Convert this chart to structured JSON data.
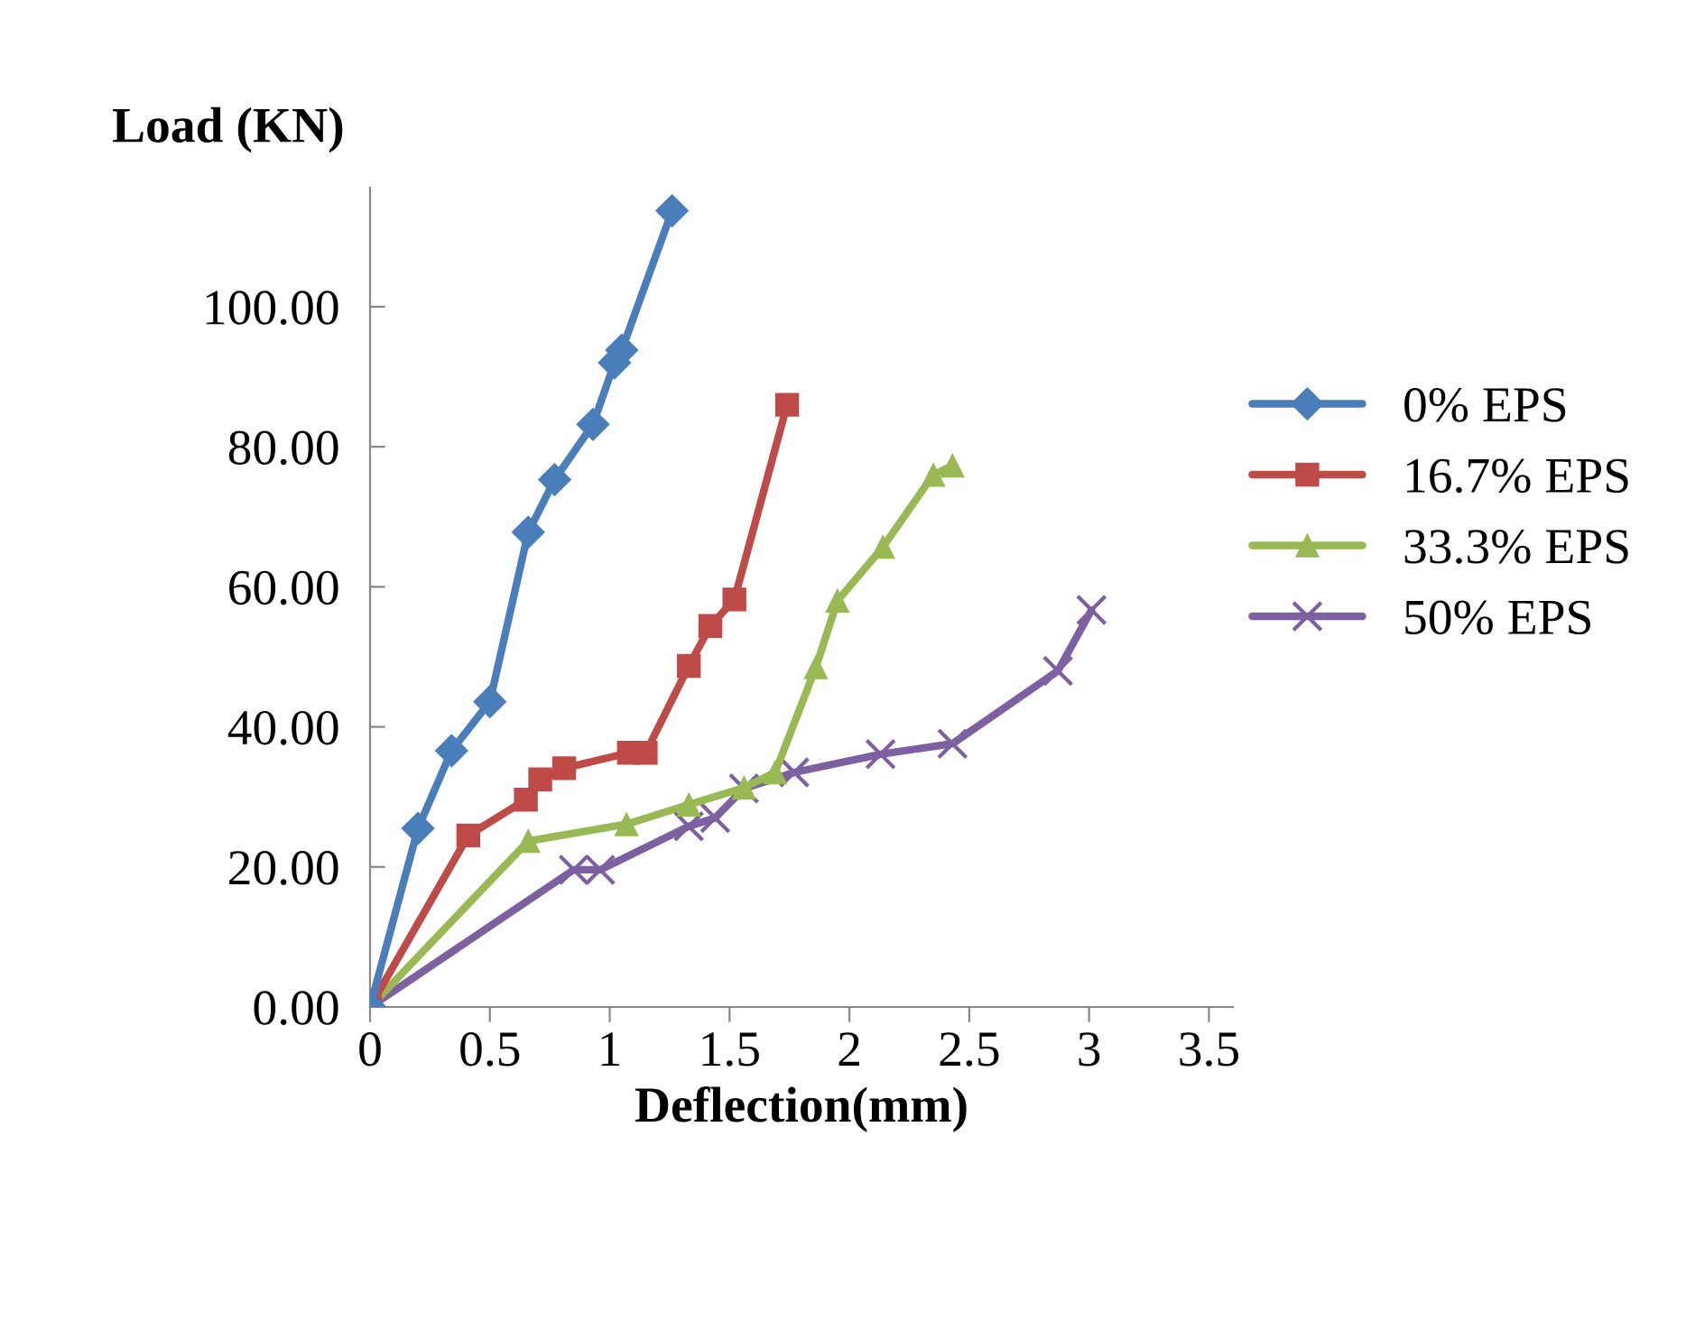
{
  "chart_data": {
    "type": "line",
    "xlabel": "Deflection(mm)",
    "ylabel": "Load (KN)",
    "xlim": [
      0,
      3.6
    ],
    "ylim": [
      0,
      117
    ],
    "xticks": [
      0,
      0.5,
      1,
      1.5,
      2,
      2.5,
      3,
      3.5
    ],
    "yticks": [
      {
        "value": 0,
        "label": "0.00"
      },
      {
        "value": 20,
        "label": "20.00"
      },
      {
        "value": 40,
        "label": "40.00"
      },
      {
        "value": 60,
        "label": "60.00"
      },
      {
        "value": 80,
        "label": "80.00"
      },
      {
        "value": 100,
        "label": "100.00"
      }
    ],
    "grid": false,
    "legend": "right",
    "line_style": "solid",
    "series": [
      {
        "name": "0% EPS",
        "color": "#4a7ebb",
        "marker": "diamond",
        "x": [
          0,
          0.2,
          0.34,
          0.5,
          0.66,
          0.77,
          0.93,
          1.02,
          1.05,
          1.26
        ],
        "values": [
          0,
          25.5,
          36.6,
          43.6,
          67.8,
          75.3,
          83.2,
          92,
          93.8,
          113.7
        ]
      },
      {
        "name": "16.7% EPS",
        "color": "#be4b48",
        "marker": "square",
        "x": [
          0,
          0.41,
          0.65,
          0.71,
          0.81,
          1.08,
          1.15,
          1.33,
          1.42,
          1.52,
          1.74
        ],
        "values": [
          0,
          24.5,
          29.6,
          32.5,
          34.1,
          36.3,
          36.3,
          48.7,
          54.4,
          58.2,
          86
        ]
      },
      {
        "name": "33.3% EPS",
        "color": "#98b954",
        "marker": "triangle",
        "x": [
          0,
          0.66,
          1.07,
          1.33,
          1.56,
          1.69,
          1.86,
          1.95,
          2.14,
          2.35,
          2.43
        ],
        "values": [
          0,
          23.7,
          26.1,
          28.9,
          31.3,
          33.5,
          48.5,
          58,
          65.7,
          76,
          77.3
        ]
      },
      {
        "name": "50% EPS",
        "color": "#7d60a0",
        "marker": "cross",
        "x": [
          0,
          0.85,
          0.96,
          1.33,
          1.44,
          1.56,
          1.77,
          2.13,
          2.43,
          2.87,
          3.01
        ],
        "values": [
          0,
          19.6,
          19.6,
          25.8,
          27,
          31.2,
          33.5,
          36.1,
          37.6,
          48,
          56.7
        ]
      }
    ]
  }
}
